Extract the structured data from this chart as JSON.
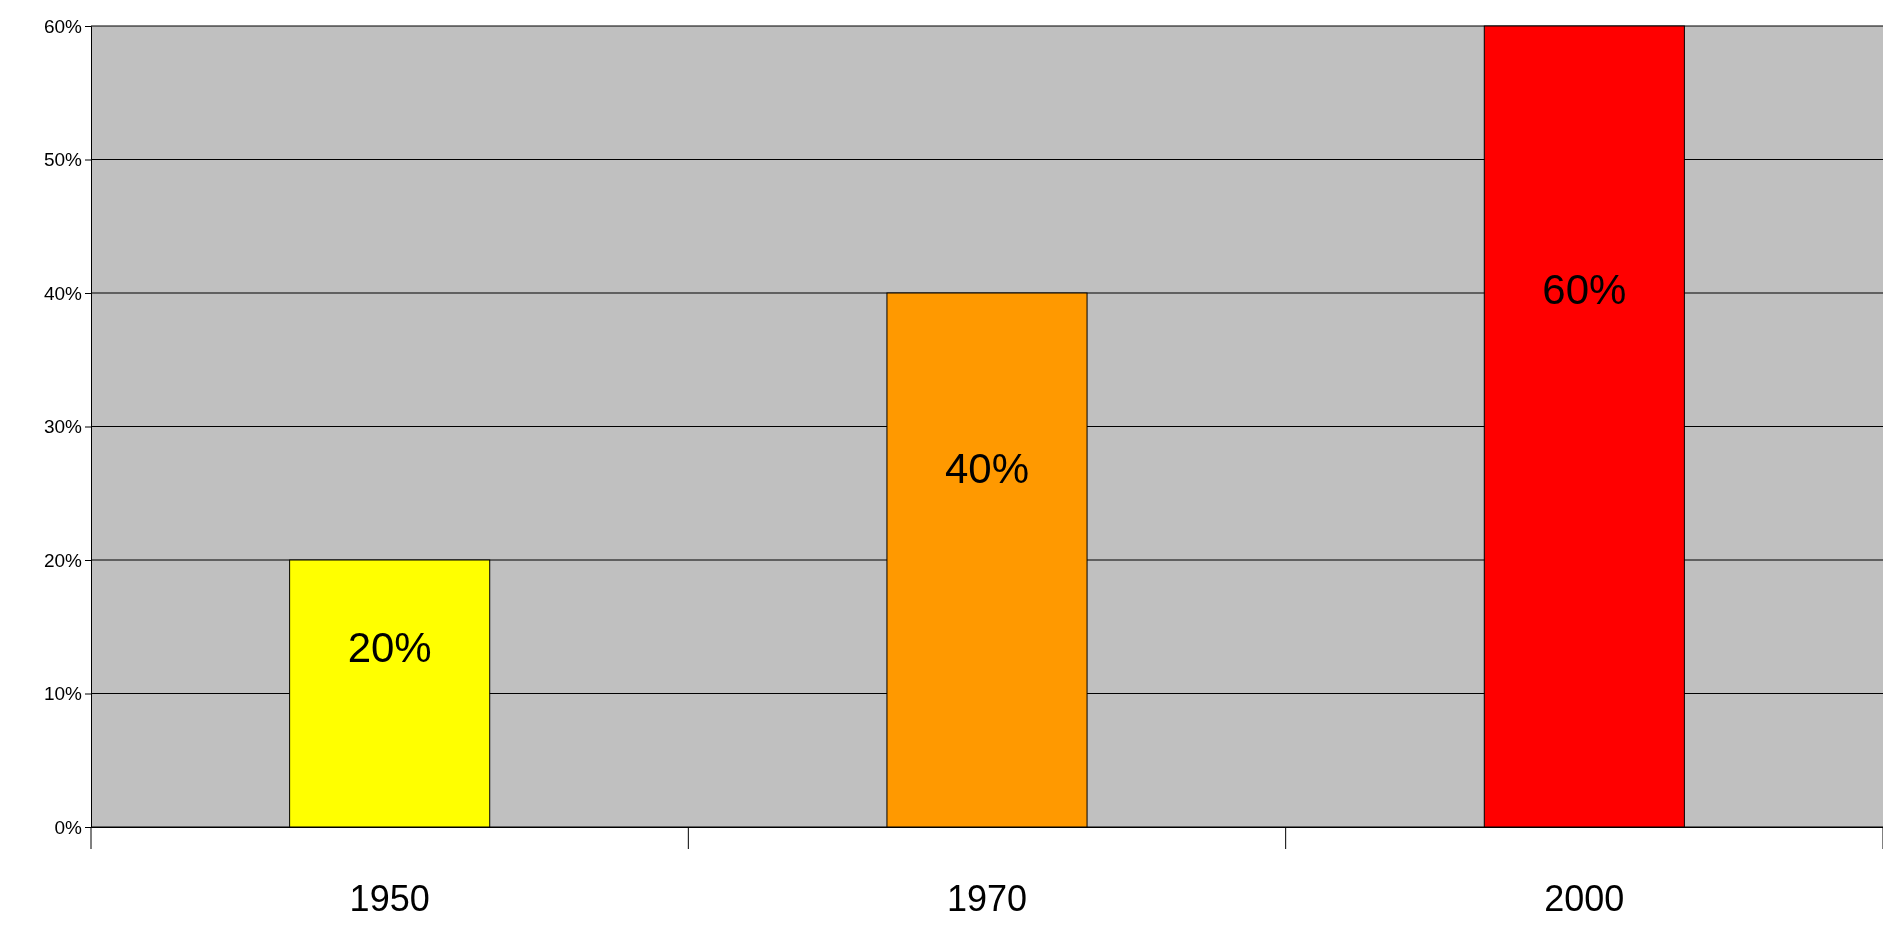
{
  "chart_data": {
    "type": "bar",
    "categories": [
      "1950",
      "1970",
      "2000"
    ],
    "values": [
      20,
      40,
      60
    ],
    "colors": [
      "#ffff00",
      "#ff9900",
      "#ff0000"
    ],
    "value_labels": [
      "20%",
      "40%",
      "60%"
    ],
    "ylim": [
      0,
      60
    ],
    "yticks": [
      {
        "value": 0,
        "label": "0%"
      },
      {
        "value": 10,
        "label": "10%"
      },
      {
        "value": 20,
        "label": "20%"
      },
      {
        "value": 30,
        "label": "30%"
      },
      {
        "value": 40,
        "label": "40%"
      },
      {
        "value": 50,
        "label": "50%"
      },
      {
        "value": 60,
        "label": "60%"
      }
    ],
    "grid": true
  }
}
